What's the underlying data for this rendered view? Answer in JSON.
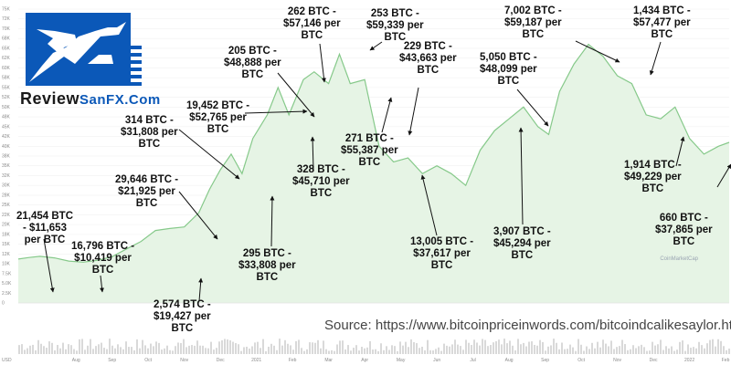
{
  "logo": {
    "word1": "Review",
    "word2": "SanFX.Com"
  },
  "source": "Source: https://www.bitcoinpriceinwords.com/bitcoindcalikesaylor.htm",
  "watermark": "CoinMarketCap",
  "colors": {
    "line": "#86c98a",
    "fill": "#e6f4e5",
    "logo_blue": "#0b58b8",
    "text": "#111111",
    "volume": "#c9c9c9"
  },
  "chart_data": {
    "type": "area",
    "ylim": [
      0,
      75000
    ],
    "y_ticks": [
      "0",
      "2.5K",
      "5.0K",
      "7.5K",
      "10K",
      "12K",
      "15K",
      "18K",
      "20K",
      "22K",
      "25K",
      "28K",
      "30K",
      "32K",
      "35K",
      "38K",
      "40K",
      "42K",
      "45K",
      "48K",
      "50K",
      "52K",
      "55K",
      "58K",
      "60K",
      "62K",
      "65K",
      "68K",
      "70K",
      "72K",
      "75K"
    ],
    "x_ticks": [
      "Aug",
      "Sep",
      "Oct",
      "Nov",
      "Dec",
      "2021",
      "Feb",
      "Mar",
      "Apr",
      "May",
      "Jun",
      "Jul",
      "Aug",
      "Sep",
      "Oct",
      "Nov",
      "Dec",
      "2022",
      "Feb"
    ],
    "x_start_label": "USD",
    "series": [
      {
        "values": [
          [
            0,
            11200
          ],
          [
            0.3,
            11600
          ],
          [
            0.6,
            11900
          ],
          [
            1.0,
            11500
          ],
          [
            1.4,
            10700
          ],
          [
            1.8,
            10400
          ],
          [
            2.2,
            10900
          ],
          [
            2.6,
            11800
          ],
          [
            3.0,
            13800
          ],
          [
            3.4,
            15700
          ],
          [
            3.8,
            18500
          ],
          [
            4.2,
            19000
          ],
          [
            4.6,
            19400
          ],
          [
            5.0,
            23000
          ],
          [
            5.3,
            29000
          ],
          [
            5.6,
            34000
          ],
          [
            5.9,
            38000
          ],
          [
            6.2,
            33000
          ],
          [
            6.5,
            42000
          ],
          [
            6.9,
            48000
          ],
          [
            7.2,
            55000
          ],
          [
            7.5,
            48000
          ],
          [
            7.9,
            57000
          ],
          [
            8.2,
            59000
          ],
          [
            8.6,
            56000
          ],
          [
            8.9,
            63500
          ],
          [
            9.2,
            56000
          ],
          [
            9.6,
            57000
          ],
          [
            10.0,
            40000
          ],
          [
            10.4,
            36000
          ],
          [
            10.8,
            37000
          ],
          [
            11.2,
            33000
          ],
          [
            11.6,
            35000
          ],
          [
            12.0,
            33000
          ],
          [
            12.4,
            30000
          ],
          [
            12.8,
            39000
          ],
          [
            13.2,
            44000
          ],
          [
            13.6,
            47000
          ],
          [
            14.0,
            50000
          ],
          [
            14.4,
            45000
          ],
          [
            14.7,
            43000
          ],
          [
            15.0,
            54000
          ],
          [
            15.4,
            61000
          ],
          [
            15.8,
            66000
          ],
          [
            16.2,
            63000
          ],
          [
            16.6,
            58000
          ],
          [
            17.0,
            56000
          ],
          [
            17.4,
            48000
          ],
          [
            17.8,
            47000
          ],
          [
            18.2,
            50000
          ],
          [
            18.6,
            42000
          ],
          [
            19.0,
            38000
          ],
          [
            19.4,
            40000
          ],
          [
            19.7,
            41000
          ]
        ]
      }
    ],
    "annotations": [
      {
        "lines": [
          "21,454 BTC",
          "- $11,653",
          "per BTC"
        ]
      },
      {
        "lines": [
          "16,796 BTC -",
          "$10,419 per",
          "BTC"
        ]
      },
      {
        "lines": [
          "2,574 BTC -",
          "$19,427 per",
          "BTC"
        ]
      },
      {
        "lines": [
          "29,646 BTC -",
          "$21,925 per",
          "BTC"
        ]
      },
      {
        "lines": [
          "314 BTC -",
          "$31,808 per",
          "BTC"
        ]
      },
      {
        "lines": [
          "295 BTC -",
          "$33,808 per",
          "BTC"
        ]
      },
      {
        "lines": [
          "19,452 BTC -",
          "$52,765 per",
          "BTC"
        ]
      },
      {
        "lines": [
          "205 BTC -",
          "$48,888 per",
          "BTC"
        ]
      },
      {
        "lines": [
          "262 BTC -",
          "$57,146 per",
          "BTC"
        ]
      },
      {
        "lines": [
          "328 BTC -",
          "$45,710 per",
          "BTC"
        ]
      },
      {
        "lines": [
          "253 BTC -",
          "$59,339 per",
          "BTC"
        ]
      },
      {
        "lines": [
          "229 BTC -",
          "$43,663 per",
          "BTC"
        ]
      },
      {
        "lines": [
          "271 BTC -",
          "$55,387 per",
          "BTC"
        ]
      },
      {
        "lines": [
          "13,005 BTC -",
          "$37,617 per",
          "BTC"
        ]
      },
      {
        "lines": [
          "3,907 BTC -",
          "$45,294 per",
          "BTC"
        ]
      },
      {
        "lines": [
          "5,050 BTC -",
          "$48,099 per",
          "BTC"
        ]
      },
      {
        "lines": [
          "7,002 BTC -",
          "$59,187 per",
          "BTC"
        ]
      },
      {
        "lines": [
          "1,434 BTC -",
          "$57,477 per",
          "BTC"
        ]
      },
      {
        "lines": [
          "1,914 BTC -",
          "$49,229 per",
          "BTC"
        ]
      },
      {
        "lines": [
          "660 BTC -",
          "$37,865 per",
          "BTC"
        ]
      }
    ]
  }
}
